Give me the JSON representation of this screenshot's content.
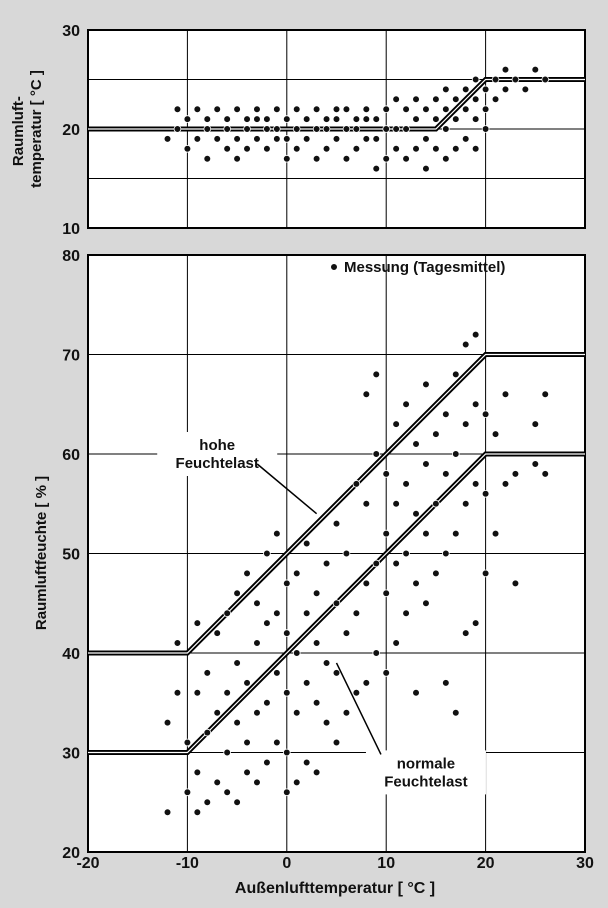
{
  "chart_data": [
    {
      "type": "scatter",
      "ylabel": "Raumluft-\ntemperatur  [ °C ]",
      "xlim": [
        -20,
        30
      ],
      "ylim": [
        10,
        30
      ],
      "yticks": [
        "10",
        "20",
        "30"
      ],
      "grid": true,
      "reference_line": [
        [
          -20,
          20
        ],
        [
          15,
          20
        ],
        [
          20,
          25
        ],
        [
          30,
          25
        ]
      ],
      "series": [
        {
          "values": [
            [
              -12,
              19
            ],
            [
              -11,
              20
            ],
            [
              -11,
              22
            ],
            [
              -10,
              18
            ],
            [
              -10,
              21
            ],
            [
              -9,
              19
            ],
            [
              -9,
              22
            ],
            [
              -8,
              17
            ],
            [
              -8,
              20
            ],
            [
              -8,
              21
            ],
            [
              -7,
              19
            ],
            [
              -7,
              22
            ],
            [
              -6,
              18
            ],
            [
              -6,
              20
            ],
            [
              -6,
              21
            ],
            [
              -5,
              17
            ],
            [
              -5,
              19
            ],
            [
              -5,
              22
            ],
            [
              -4,
              18
            ],
            [
              -4,
              20
            ],
            [
              -4,
              21
            ],
            [
              -3,
              19
            ],
            [
              -3,
              21
            ],
            [
              -3,
              22
            ],
            [
              -2,
              18
            ],
            [
              -2,
              20
            ],
            [
              -2,
              21
            ],
            [
              -1,
              19
            ],
            [
              -1,
              20
            ],
            [
              -1,
              22
            ],
            [
              0,
              17
            ],
            [
              0,
              19
            ],
            [
              0,
              21
            ],
            [
              1,
              18
            ],
            [
              1,
              20
            ],
            [
              1,
              22
            ],
            [
              2,
              19
            ],
            [
              2,
              21
            ],
            [
              3,
              17
            ],
            [
              3,
              20
            ],
            [
              3,
              22
            ],
            [
              4,
              18
            ],
            [
              4,
              20
            ],
            [
              4,
              21
            ],
            [
              5,
              19
            ],
            [
              5,
              21
            ],
            [
              5,
              22
            ],
            [
              6,
              17
            ],
            [
              6,
              20
            ],
            [
              6,
              22
            ],
            [
              7,
              18
            ],
            [
              7,
              20
            ],
            [
              7,
              21
            ],
            [
              8,
              19
            ],
            [
              8,
              21
            ],
            [
              8,
              22
            ],
            [
              9,
              16
            ],
            [
              9,
              19
            ],
            [
              9,
              21
            ],
            [
              10,
              17
            ],
            [
              10,
              20
            ],
            [
              10,
              22
            ],
            [
              11,
              18
            ],
            [
              11,
              20
            ],
            [
              11,
              23
            ],
            [
              12,
              17
            ],
            [
              12,
              20
            ],
            [
              12,
              22
            ],
            [
              13,
              18
            ],
            [
              13,
              21
            ],
            [
              13,
              23
            ],
            [
              14,
              16
            ],
            [
              14,
              19
            ],
            [
              14,
              22
            ],
            [
              15,
              18
            ],
            [
              15,
              21
            ],
            [
              15,
              23
            ],
            [
              16,
              17
            ],
            [
              16,
              20
            ],
            [
              16,
              22
            ],
            [
              16,
              24
            ],
            [
              17,
              18
            ],
            [
              17,
              21
            ],
            [
              17,
              23
            ],
            [
              18,
              19
            ],
            [
              18,
              22
            ],
            [
              18,
              24
            ],
            [
              19,
              18
            ],
            [
              19,
              21
            ],
            [
              19,
              23
            ],
            [
              19,
              25
            ],
            [
              20,
              20
            ],
            [
              20,
              22
            ],
            [
              20,
              24
            ],
            [
              21,
              23
            ],
            [
              21,
              25
            ],
            [
              22,
              24
            ],
            [
              22,
              26
            ],
            [
              23,
              25
            ],
            [
              24,
              24
            ],
            [
              25,
              26
            ],
            [
              26,
              25
            ]
          ]
        }
      ]
    },
    {
      "type": "scatter",
      "xlabel": "Außenlufttemperatur  [ °C ]",
      "ylabel": "Raumluftfeuchte  [ % ]",
      "xlim": [
        -20,
        30
      ],
      "ylim": [
        20,
        80
      ],
      "xticks": [
        "-20",
        "-10",
        "0",
        "10",
        "20",
        "30"
      ],
      "yticks": [
        "20",
        "30",
        "40",
        "50",
        "60",
        "70",
        "80"
      ],
      "grid": true,
      "legend": "top-right",
      "reference_lines": [
        [
          [
            -20,
            40
          ],
          [
            -10,
            40
          ],
          [
            20,
            70
          ],
          [
            30,
            70
          ]
        ],
        [
          [
            -20,
            30
          ],
          [
            -10,
            30
          ],
          [
            20,
            60
          ],
          [
            30,
            60
          ]
        ]
      ],
      "annotations": [
        {
          "text": "hohe\nFeuchtelast",
          "at": [
            -7,
            60
          ],
          "points_to": [
            3,
            54
          ]
        },
        {
          "text": "normale\nFeuchtelast",
          "at": [
            14,
            28
          ],
          "points_to": [
            5,
            39
          ]
        }
      ],
      "series": [
        {
          "name": "Messung (Tagesmittel)",
          "values": [
            [
              -12,
              24
            ],
            [
              -12,
              33
            ],
            [
              -11,
              36
            ],
            [
              -11,
              41
            ],
            [
              -10,
              26
            ],
            [
              -10,
              31
            ],
            [
              -9,
              24
            ],
            [
              -9,
              28
            ],
            [
              -9,
              36
            ],
            [
              -9,
              43
            ],
            [
              -8,
              25
            ],
            [
              -8,
              32
            ],
            [
              -8,
              38
            ],
            [
              -7,
              27
            ],
            [
              -7,
              34
            ],
            [
              -7,
              42
            ],
            [
              -6,
              26
            ],
            [
              -6,
              30
            ],
            [
              -6,
              36
            ],
            [
              -6,
              44
            ],
            [
              -5,
              25
            ],
            [
              -5,
              33
            ],
            [
              -5,
              39
            ],
            [
              -5,
              46
            ],
            [
              -4,
              28
            ],
            [
              -4,
              31
            ],
            [
              -4,
              37
            ],
            [
              -4,
              48
            ],
            [
              -3,
              27
            ],
            [
              -3,
              34
            ],
            [
              -3,
              41
            ],
            [
              -3,
              45
            ],
            [
              -2,
              29
            ],
            [
              -2,
              35
            ],
            [
              -2,
              43
            ],
            [
              -2,
              50
            ],
            [
              -1,
              31
            ],
            [
              -1,
              38
            ],
            [
              -1,
              44
            ],
            [
              -1,
              52
            ],
            [
              0,
              26
            ],
            [
              0,
              30
            ],
            [
              0,
              36
            ],
            [
              0,
              42
            ],
            [
              0,
              47
            ],
            [
              1,
              27
            ],
            [
              1,
              34
            ],
            [
              1,
              40
            ],
            [
              1,
              48
            ],
            [
              2,
              29
            ],
            [
              2,
              37
            ],
            [
              2,
              44
            ],
            [
              2,
              51
            ],
            [
              3,
              28
            ],
            [
              3,
              35
            ],
            [
              3,
              41
            ],
            [
              3,
              46
            ],
            [
              4,
              33
            ],
            [
              4,
              39
            ],
            [
              4,
              49
            ],
            [
              5,
              31
            ],
            [
              5,
              38
            ],
            [
              5,
              45
            ],
            [
              5,
              53
            ],
            [
              6,
              34
            ],
            [
              6,
              42
            ],
            [
              6,
              50
            ],
            [
              7,
              36
            ],
            [
              7,
              44
            ],
            [
              7,
              57
            ],
            [
              8,
              37
            ],
            [
              8,
              47
            ],
            [
              8,
              55
            ],
            [
              8,
              66
            ],
            [
              9,
              40
            ],
            [
              9,
              49
            ],
            [
              9,
              60
            ],
            [
              9,
              68
            ],
            [
              10,
              38
            ],
            [
              10,
              46
            ],
            [
              10,
              52
            ],
            [
              10,
              58
            ],
            [
              11,
              41
            ],
            [
              11,
              49
            ],
            [
              11,
              55
            ],
            [
              11,
              63
            ],
            [
              12,
              44
            ],
            [
              12,
              50
            ],
            [
              12,
              57
            ],
            [
              12,
              65
            ],
            [
              13,
              36
            ],
            [
              13,
              47
            ],
            [
              13,
              54
            ],
            [
              13,
              61
            ],
            [
              14,
              45
            ],
            [
              14,
              52
            ],
            [
              14,
              59
            ],
            [
              14,
              67
            ],
            [
              15,
              48
            ],
            [
              15,
              55
            ],
            [
              15,
              62
            ],
            [
              16,
              37
            ],
            [
              16,
              50
            ],
            [
              16,
              58
            ],
            [
              16,
              64
            ],
            [
              17,
              34
            ],
            [
              17,
              52
            ],
            [
              17,
              60
            ],
            [
              17,
              68
            ],
            [
              18,
              42
            ],
            [
              18,
              55
            ],
            [
              18,
              63
            ],
            [
              18,
              71
            ],
            [
              19,
              43
            ],
            [
              19,
              57
            ],
            [
              19,
              65
            ],
            [
              19,
              72
            ],
            [
              20,
              48
            ],
            [
              20,
              56
            ],
            [
              20,
              64
            ],
            [
              21,
              52
            ],
            [
              21,
              62
            ],
            [
              22,
              57
            ],
            [
              22,
              66
            ],
            [
              23,
              47
            ],
            [
              23,
              58
            ],
            [
              25,
              59
            ],
            [
              25,
              63
            ],
            [
              26,
              58
            ],
            [
              26,
              66
            ]
          ]
        }
      ]
    }
  ]
}
